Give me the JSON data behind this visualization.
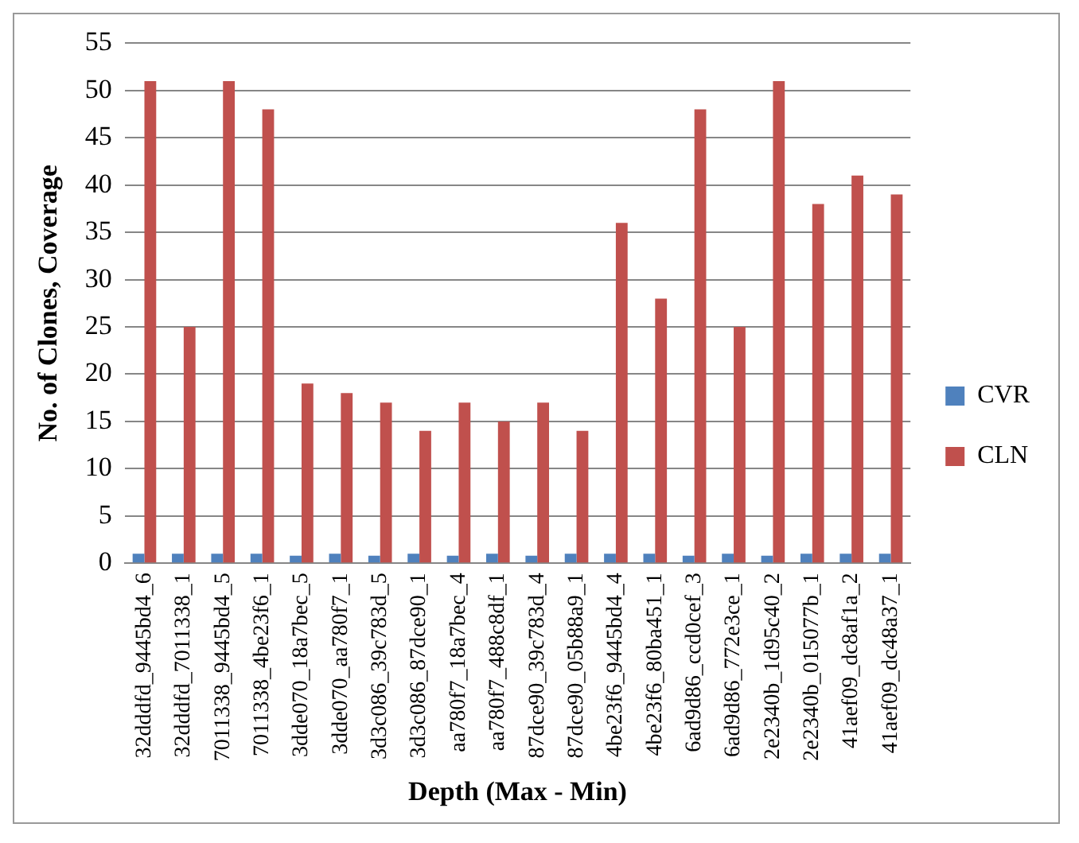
{
  "chart_data": {
    "type": "bar",
    "xlabel": "Depth (Max - Min)",
    "ylabel": "No. of Clones, Coverage",
    "categories": [
      "32dddfd_9445bd4_6",
      "32dddfd_7011338_1",
      "7011338_9445bd4_5",
      "7011338_4be23f6_1",
      "3dde070_18a7bec_5",
      "3dde070_aa780f7_1",
      "3d3c086_39c783d_5",
      "3d3c086_87dce90_1",
      "aa780f7_18a7bec_4",
      "aa780f7_488c8df_1",
      "87dce90_39c783d_4",
      "87dce90_05b88a9_1",
      "4be23f6_9445bd4_4",
      "4be23f6_80ba451_1",
      "6ad9d86_ccd0cef_3",
      "6ad9d86_772e3ce_1",
      "2e2340b_1d95c40_2",
      "2e2340b_015077b_1",
      "41aef09_dc8af1a_2",
      "41aef09_dc48a37_1"
    ],
    "series": [
      {
        "name": "CVR",
        "color": "#4f81bd",
        "values": [
          1,
          1,
          1,
          1,
          0.8,
          1,
          0.8,
          1,
          0.8,
          1,
          0.8,
          1,
          1,
          1,
          0.8,
          1,
          0.8,
          1,
          1,
          1
        ]
      },
      {
        "name": "CLN",
        "color": "#c0504d",
        "values": [
          51,
          25,
          51,
          48,
          19,
          18,
          17,
          14,
          17,
          15,
          17,
          14,
          36,
          28,
          48,
          25,
          51,
          38,
          41,
          39
        ]
      }
    ],
    "ylim": [
      0,
      55
    ],
    "yticks": [
      0,
      5,
      10,
      15,
      20,
      25,
      30,
      35,
      40,
      45,
      50,
      55
    ],
    "grid": "y",
    "legend": "right"
  }
}
